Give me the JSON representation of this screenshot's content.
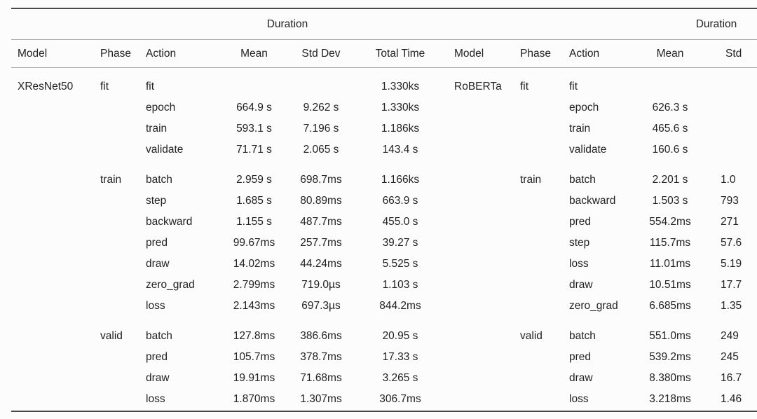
{
  "colors": {
    "text": "#222222",
    "rule_dark": "#4a4a4a",
    "rule_light": "#a8a8a8",
    "background": "#fcfcfc"
  },
  "tables": [
    {
      "duration_header": "Duration",
      "columns": [
        "Model",
        "Phase",
        "Action",
        "Mean",
        "Std Dev",
        "Total Time"
      ],
      "groups": [
        {
          "model": "XResNet50",
          "phase": "fit",
          "rows": [
            {
              "action": "fit",
              "mean": "",
              "std": "",
              "total": "1.330ks"
            },
            {
              "action": "epoch",
              "mean": "664.9 s",
              "std": "9.262 s",
              "total": "1.330ks"
            },
            {
              "action": "train",
              "mean": "593.1 s",
              "std": "7.196 s",
              "total": "1.186ks"
            },
            {
              "action": "validate",
              "mean": "71.71 s",
              "std": "2.065 s",
              "total": "143.4 s"
            }
          ]
        },
        {
          "model": "",
          "phase": "train",
          "rows": [
            {
              "action": "batch",
              "mean": "2.959 s",
              "std": "698.7ms",
              "total": "1.166ks"
            },
            {
              "action": "step",
              "mean": "1.685 s",
              "std": "80.89ms",
              "total": "663.9 s"
            },
            {
              "action": "backward",
              "mean": "1.155 s",
              "std": "487.7ms",
              "total": "455.0 s"
            },
            {
              "action": "pred",
              "mean": "99.67ms",
              "std": "257.7ms",
              "total": "39.27 s"
            },
            {
              "action": "draw",
              "mean": "14.02ms",
              "std": "44.24ms",
              "total": "5.525 s"
            },
            {
              "action": "zero_grad",
              "mean": "2.799ms",
              "std": "719.0µs",
              "total": "1.103 s"
            },
            {
              "action": "loss",
              "mean": "2.143ms",
              "std": "697.3µs",
              "total": "844.2ms"
            }
          ]
        },
        {
          "model": "",
          "phase": "valid",
          "rows": [
            {
              "action": "batch",
              "mean": "127.8ms",
              "std": "386.6ms",
              "total": "20.95 s"
            },
            {
              "action": "pred",
              "mean": "105.7ms",
              "std": "378.7ms",
              "total": "17.33 s"
            },
            {
              "action": "draw",
              "mean": "19.91ms",
              "std": "71.68ms",
              "total": "3.265 s"
            },
            {
              "action": "loss",
              "mean": "1.870ms",
              "std": "1.307ms",
              "total": "306.7ms"
            }
          ]
        }
      ]
    },
    {
      "duration_header": "Duration",
      "columns": [
        "Model",
        "Phase",
        "Action",
        "Mean",
        "Std"
      ],
      "groups": [
        {
          "model": "RoBERTa",
          "phase": "fit",
          "rows": [
            {
              "action": "fit",
              "mean": "",
              "std": ""
            },
            {
              "action": "epoch",
              "mean": "626.3 s",
              "std": ""
            },
            {
              "action": "train",
              "mean": "465.6 s",
              "std": ""
            },
            {
              "action": "validate",
              "mean": "160.6 s",
              "std": ""
            }
          ]
        },
        {
          "model": "",
          "phase": "train",
          "rows": [
            {
              "action": "batch",
              "mean": "2.201 s",
              "std": "1.0"
            },
            {
              "action": "backward",
              "mean": "1.503 s",
              "std": "793"
            },
            {
              "action": "pred",
              "mean": "554.2ms",
              "std": "271"
            },
            {
              "action": "step",
              "mean": "115.7ms",
              "std": "57.6"
            },
            {
              "action": "loss",
              "mean": "11.01ms",
              "std": "5.19"
            },
            {
              "action": "draw",
              "mean": "10.51ms",
              "std": "17.7"
            },
            {
              "action": "zero_grad",
              "mean": "6.685ms",
              "std": "1.35"
            }
          ]
        },
        {
          "model": "",
          "phase": "valid",
          "rows": [
            {
              "action": "batch",
              "mean": "551.0ms",
              "std": "249"
            },
            {
              "action": "pred",
              "mean": "539.2ms",
              "std": "245"
            },
            {
              "action": "draw",
              "mean": "8.380ms",
              "std": "16.7"
            },
            {
              "action": "loss",
              "mean": "3.218ms",
              "std": "1.46"
            }
          ]
        }
      ]
    }
  ]
}
